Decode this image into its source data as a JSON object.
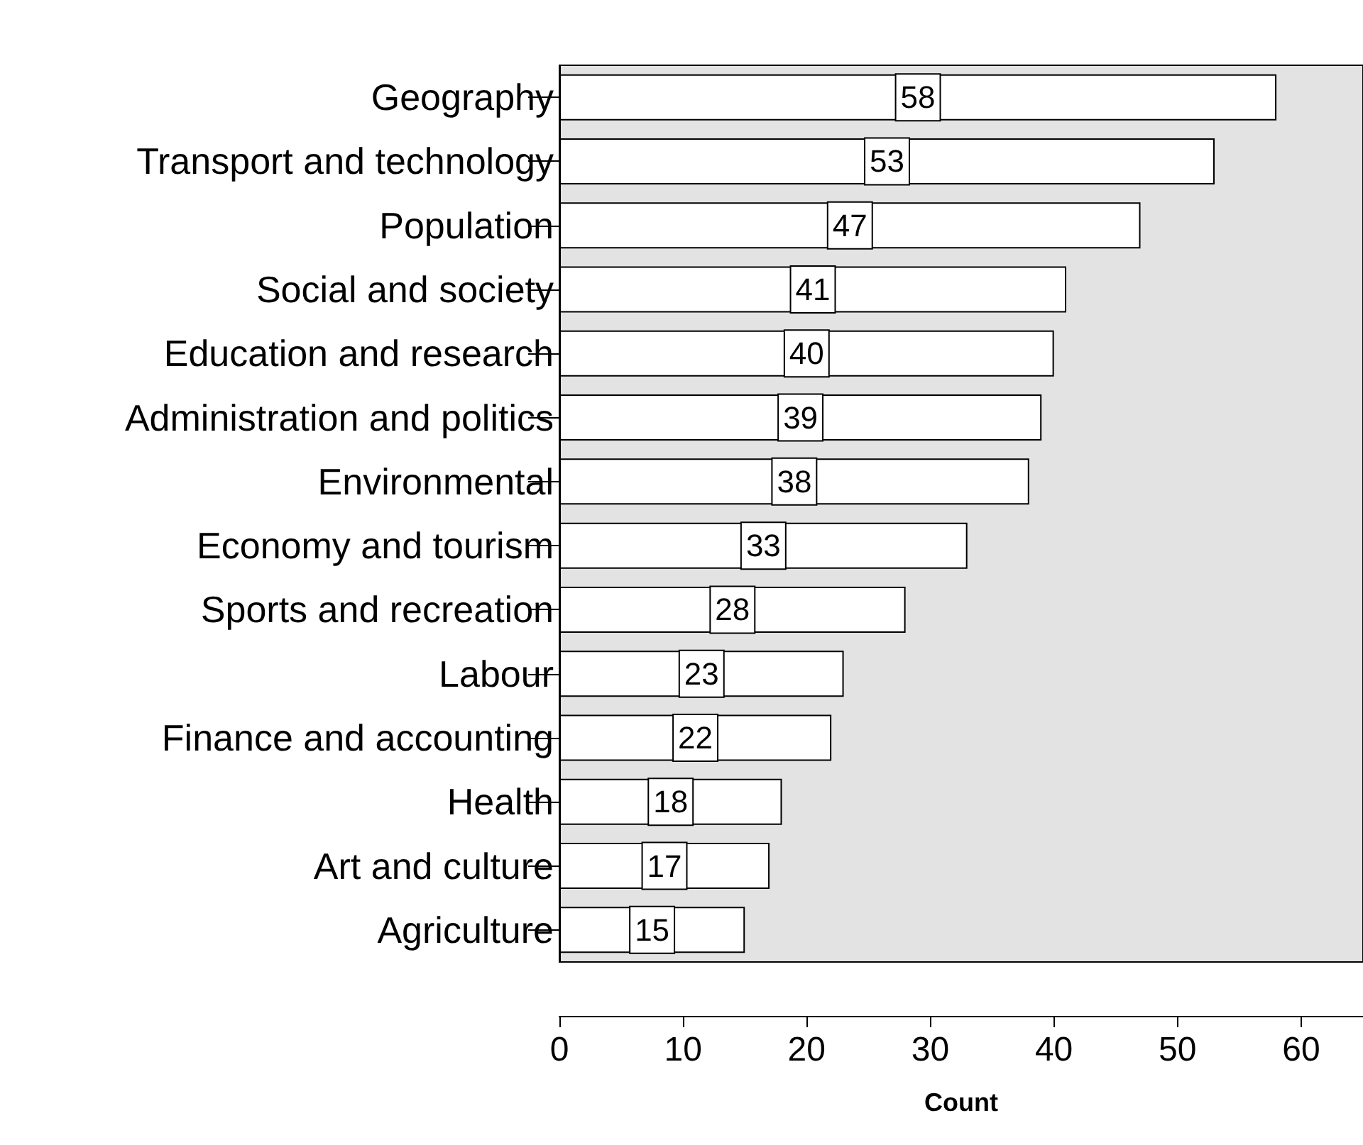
{
  "chart_data": {
    "type": "bar",
    "orientation": "horizontal",
    "xlabel": "Count",
    "categories": [
      "Geography",
      "Transport and technology",
      "Population",
      "Social and society",
      "Education and research",
      "Administration and politics",
      "Environmental",
      "Economy and tourism",
      "Sports and recreation",
      "Labour",
      "Finance and accounting",
      "Health",
      "Art and culture",
      "Agriculture"
    ],
    "values": [
      58,
      53,
      47,
      41,
      40,
      39,
      38,
      33,
      28,
      23,
      22,
      18,
      17,
      15
    ],
    "color": "#ffffff",
    "xlim": [
      0,
      65
    ],
    "xticks": [
      0,
      10,
      20,
      30,
      40,
      50,
      60
    ],
    "grid": false,
    "data_labels": true
  }
}
